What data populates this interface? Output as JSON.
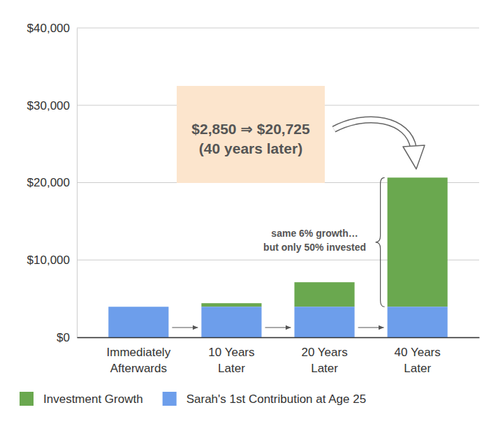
{
  "chart_data": {
    "type": "bar",
    "stacked": true,
    "categories": [
      "Immediately Afterwards",
      "10 Years Later",
      "20 Years Later",
      "40 Years Later"
    ],
    "series": [
      {
        "name": "Investment Growth",
        "color": "#6aa84f",
        "values": [
          0,
          460,
          3170,
          16700
        ]
      },
      {
        "name": "Sarah's 1st Contribution at Age 25",
        "color": "#6d9eeb",
        "values": [
          3950,
          3950,
          3950,
          3950
        ]
      }
    ],
    "ylim": [
      0,
      40000
    ],
    "yticks": [
      {
        "value": 0,
        "label": "$0"
      },
      {
        "value": 10000,
        "label": "$10,000"
      },
      {
        "value": 20000,
        "label": "$20,000"
      },
      {
        "value": 30000,
        "label": "$30,000"
      },
      {
        "value": 40000,
        "label": "$40,000"
      }
    ],
    "grid": true,
    "legend": "bottom",
    "annotations": [
      "$2,850 ⇒ $20,725",
      "(40 years later)",
      "same 6% growth…",
      "but only 50% invested"
    ]
  }
}
